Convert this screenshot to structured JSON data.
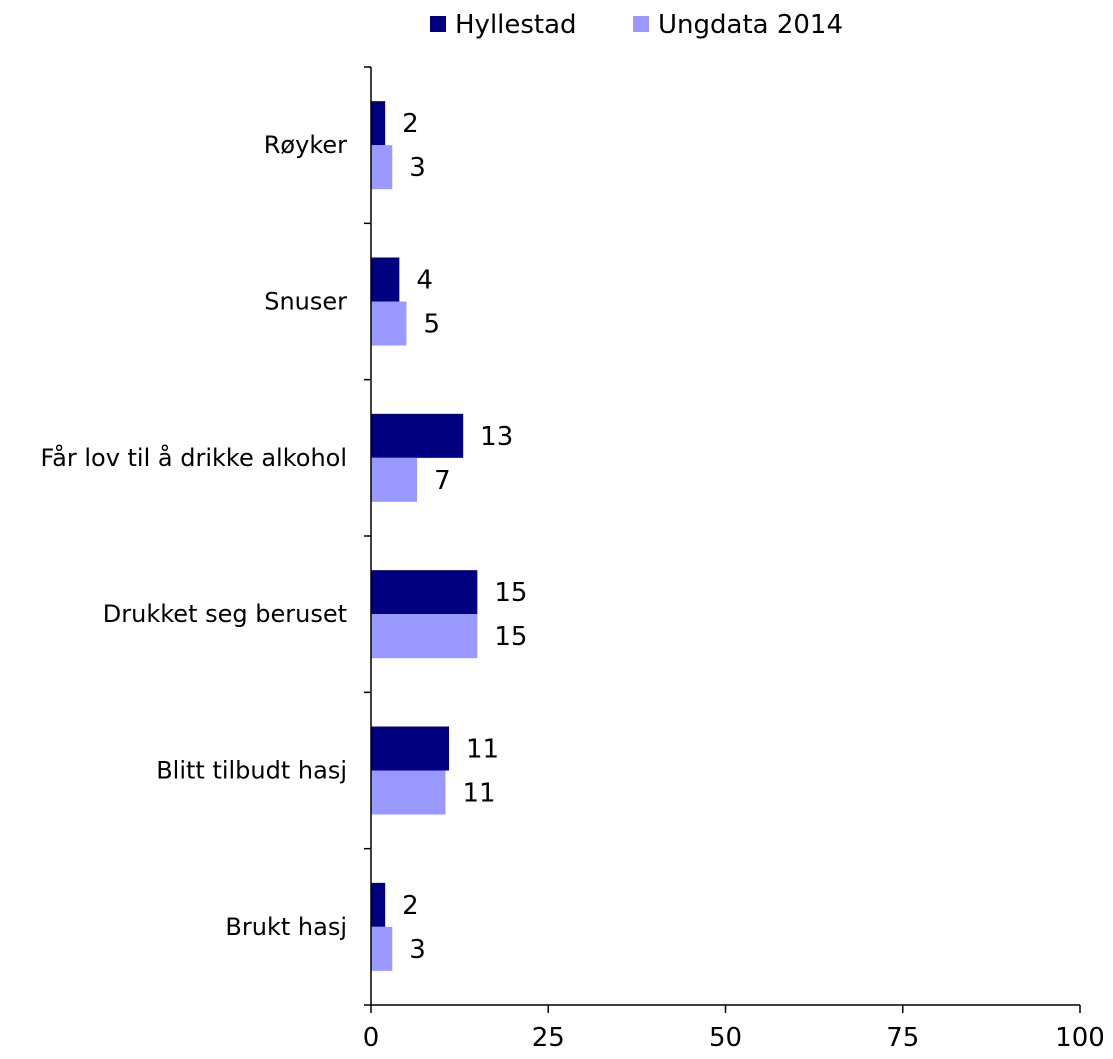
{
  "chart_data": {
    "type": "bar",
    "orientation": "horizontal",
    "categories": [
      "Røyker",
      "Snuser",
      "Får lov til å drikke alkohol",
      "Drukket seg beruset",
      "Blitt tilbudt hasj",
      "Brukt hasj"
    ],
    "series": [
      {
        "name": "Hyllestad",
        "values": [
          2,
          4,
          13,
          15,
          11,
          2
        ],
        "labels": [
          "2",
          "4",
          "13",
          "15",
          "11",
          "2"
        ],
        "color": "#000080"
      },
      {
        "name": "Ungdata 2014",
        "values": [
          3,
          5,
          6.5,
          15,
          10.5,
          3
        ],
        "labels": [
          "3",
          "5",
          "7",
          "15",
          "11",
          "3"
        ],
        "color": "#9999ff"
      }
    ],
    "xlim": [
      0,
      100
    ],
    "xticks": [
      "0",
      "25",
      "50",
      "75",
      "100"
    ],
    "grid": false,
    "legend": "top-center"
  }
}
